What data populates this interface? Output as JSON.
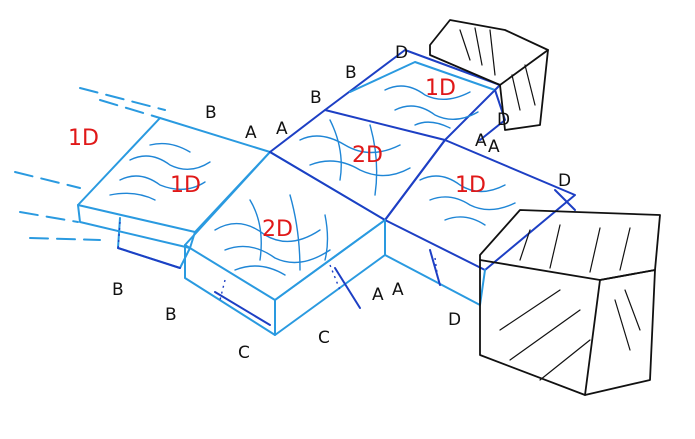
{
  "tile_labels": [
    {
      "id": "left-outer",
      "text": "1D"
    },
    {
      "id": "left",
      "text": "1D"
    },
    {
      "id": "center",
      "text": "2D"
    },
    {
      "id": "top-center",
      "text": "2D"
    },
    {
      "id": "top-right",
      "text": "1D"
    },
    {
      "id": "right",
      "text": "1D"
    }
  ],
  "edge_labels": [
    {
      "id": "b-top",
      "text": "B"
    },
    {
      "id": "a-top-1",
      "text": "A"
    },
    {
      "id": "a-top-2",
      "text": "A"
    },
    {
      "id": "b-upper-1",
      "text": "B"
    },
    {
      "id": "b-upper-2",
      "text": "B"
    },
    {
      "id": "d-top",
      "text": "D"
    },
    {
      "id": "d-top-right-1",
      "text": "D"
    },
    {
      "id": "a-right-1",
      "text": "A"
    },
    {
      "id": "a-right-2",
      "text": "A"
    },
    {
      "id": "d-right",
      "text": "D"
    },
    {
      "id": "b-bottom-1",
      "text": "B"
    },
    {
      "id": "b-bottom-2",
      "text": "B"
    },
    {
      "id": "c-bottom-1",
      "text": "C"
    },
    {
      "id": "c-bottom-2",
      "text": "C"
    },
    {
      "id": "a-bottom-1",
      "text": "A"
    },
    {
      "id": "a-bottom-2",
      "text": "A"
    },
    {
      "id": "d-bottom",
      "text": "D"
    }
  ]
}
